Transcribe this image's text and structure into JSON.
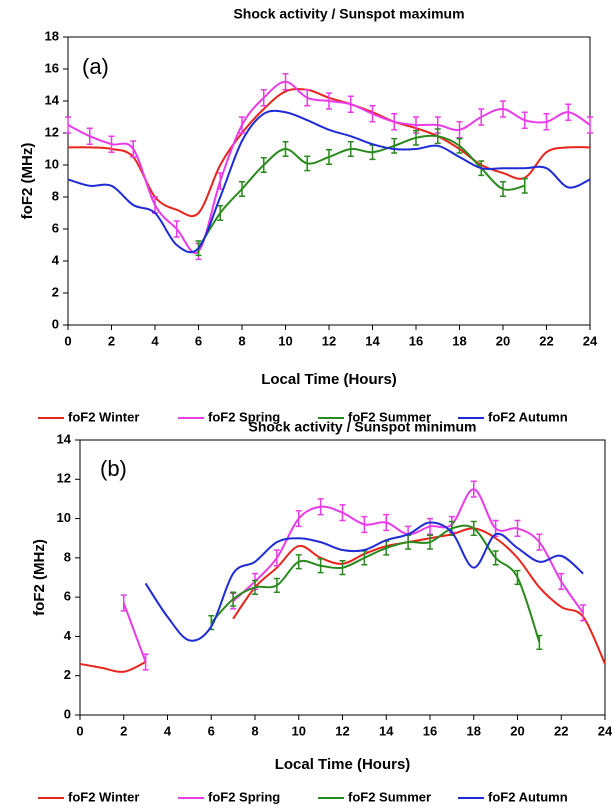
{
  "chart_data": [
    {
      "type": "line",
      "title": "Shock activity / Sunspot maximum",
      "panel_label": "(a)",
      "x_label": "Local Time (Hours)",
      "y_label": "foF2 (MHz)",
      "x": [
        0,
        1,
        2,
        3,
        4,
        5,
        6,
        7,
        8,
        9,
        10,
        11,
        12,
        13,
        14,
        15,
        16,
        17,
        18,
        19,
        20,
        21,
        22,
        23,
        24
      ],
      "xlim": [
        0,
        24
      ],
      "xticks": [
        0,
        2,
        4,
        6,
        8,
        10,
        12,
        14,
        16,
        18,
        20,
        22,
        24
      ],
      "ylim": [
        0,
        18
      ],
      "yticks": [
        0,
        2,
        4,
        6,
        8,
        10,
        12,
        14,
        16,
        18
      ],
      "series": [
        {
          "name": "foF2 Winter",
          "color": "#e8251c",
          "values": [
            11.1,
            11.1,
            11,
            10.5,
            8,
            7.2,
            7,
            10,
            12,
            13.5,
            14.6,
            14.7,
            14.2,
            13.8,
            13.3,
            12.7,
            12.3,
            11.8,
            11,
            10,
            9.5,
            9.2,
            10.8,
            11.1,
            11.1
          ]
        },
        {
          "name": "foF2 Spring",
          "color": "#e83ce8",
          "error": 0.5,
          "values": [
            12.5,
            11.8,
            11.3,
            11,
            7.5,
            6,
            4.6,
            9,
            12.5,
            14.2,
            15.2,
            14.2,
            14,
            13.8,
            13.2,
            12.7,
            12.5,
            12.5,
            12.2,
            13,
            13.5,
            12.8,
            12.7,
            13.3,
            12.5
          ]
        },
        {
          "name": "foF2 Summer",
          "color": "#2a8a1e",
          "error": 0.45,
          "values": [
            null,
            null,
            null,
            null,
            null,
            null,
            4.8,
            7,
            8.5,
            10,
            11,
            10.1,
            10.5,
            11,
            10.8,
            11.2,
            11.7,
            11.8,
            11.2,
            9.8,
            8.5,
            8.7,
            null,
            null,
            null
          ]
        },
        {
          "name": "foF2 Autumn",
          "color": "#1f2bd6",
          "values": [
            9.1,
            8.7,
            8.7,
            7.5,
            7,
            5,
            4.8,
            8,
            11.5,
            13.2,
            13.3,
            12.8,
            12.2,
            11.8,
            11.3,
            11,
            11,
            11.2,
            10.5,
            9.8,
            9.8,
            9.8,
            9.8,
            8.6,
            9.1
          ]
        }
      ]
    },
    {
      "type": "line",
      "title": "Shock activity / Sunspot minimum",
      "panel_label": "(b)",
      "x_label": "Local Time (Hours)",
      "y_label": "foF2 (MHz)",
      "x": [
        0,
        1,
        2,
        3,
        4,
        5,
        6,
        7,
        8,
        9,
        10,
        11,
        12,
        13,
        14,
        15,
        16,
        17,
        18,
        19,
        20,
        21,
        22,
        23,
        24
      ],
      "xlim": [
        0,
        24
      ],
      "xticks": [
        0,
        2,
        4,
        6,
        8,
        10,
        12,
        14,
        16,
        18,
        20,
        22,
        24
      ],
      "ylim": [
        0,
        14
      ],
      "yticks": [
        0,
        2,
        4,
        6,
        8,
        10,
        12,
        14
      ],
      "series": [
        {
          "name": "foF2 Winter",
          "color": "#e8251c",
          "values": [
            2.6,
            2.4,
            2.2,
            2.7,
            null,
            null,
            null,
            4.9,
            6.5,
            7.5,
            8.6,
            8,
            7.7,
            8.2,
            8.6,
            8.8,
            9,
            9.2,
            9.5,
            9,
            8,
            6.5,
            5.5,
            5,
            2.6
          ]
        },
        {
          "name": "foF2 Spring",
          "color": "#e83ce8",
          "error": 0.4,
          "values": [
            null,
            null,
            5.7,
            2.7,
            null,
            null,
            null,
            5.8,
            6.8,
            8,
            10,
            10.6,
            10.3,
            9.7,
            9.8,
            9.2,
            9.6,
            9.7,
            11.5,
            9.5,
            9.5,
            8.8,
            6.8,
            5.2,
            null
          ]
        },
        {
          "name": "foF2 Summer",
          "color": "#2a8a1e",
          "error": 0.35,
          "values": [
            null,
            null,
            null,
            null,
            null,
            null,
            4.7,
            5.9,
            6.5,
            6.6,
            7.8,
            7.6,
            7.5,
            8,
            8.5,
            8.8,
            8.8,
            9.5,
            9.5,
            8,
            7,
            3.7,
            null,
            null,
            null
          ]
        },
        {
          "name": "foF2 Autumn",
          "color": "#1f2bd6",
          "values": [
            null,
            null,
            null,
            6.7,
            5,
            3.8,
            4.5,
            7.2,
            7.8,
            8.8,
            9,
            8.8,
            8.4,
            8.4,
            8.9,
            9.2,
            9.8,
            9.3,
            7.5,
            9.2,
            8.5,
            7.8,
            8.1,
            7.2,
            null
          ]
        }
      ]
    }
  ]
}
